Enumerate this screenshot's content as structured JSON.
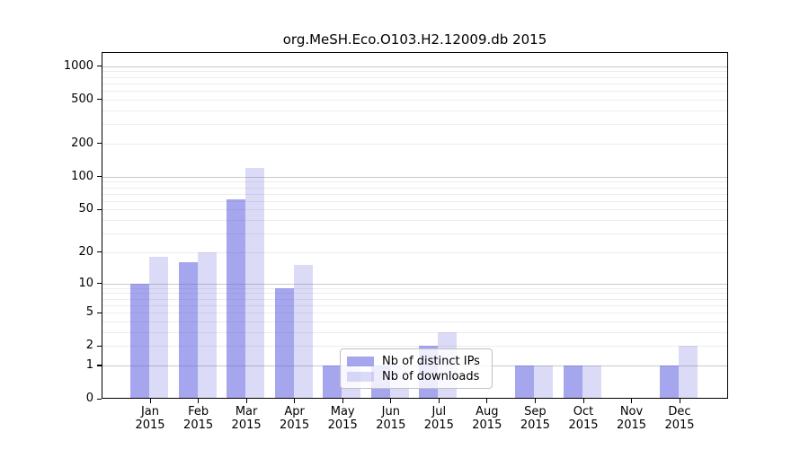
{
  "title": "org.MeSH.Eco.O103.H2.12009.db 2015",
  "legend": {
    "items": [
      {
        "label": "Nb of distinct IPs",
        "swatch_color": "rgba(92,92,224,0.55)",
        "swatch_icon": "bar-swatch-icon"
      },
      {
        "label": "Nb of downloads",
        "swatch_color": "rgba(92,92,224,0.22)",
        "swatch_icon": "bar-swatch-icon"
      }
    ]
  },
  "colors": {
    "bar_base": "#5c5ce0",
    "bar_distinct_ips": "rgba(92,92,224,0.55)",
    "bar_downloads": "rgba(92,92,224,0.22)",
    "grid_major": "#c9c9c9",
    "grid_minor": "#ececec",
    "axis": "#000000",
    "legend_border": "#c0c0c0"
  },
  "chart_data": {
    "type": "bar",
    "title": "org.MeSH.Eco.O103.H2.12009.db 2015",
    "year": "2015",
    "months": [
      "Jan",
      "Feb",
      "Mar",
      "Apr",
      "May",
      "Jun",
      "Jul",
      "Aug",
      "Sep",
      "Oct",
      "Nov",
      "Dec"
    ],
    "categories": [
      "Jan 2015",
      "Feb 2015",
      "Mar 2015",
      "Apr 2015",
      "May 2015",
      "Jun 2015",
      "Jul 2015",
      "Aug 2015",
      "Sep 2015",
      "Oct 2015",
      "Nov 2015",
      "Dec 2015"
    ],
    "series": [
      {
        "name": "Nb of distinct IPs",
        "key": "ips",
        "values": [
          10,
          16,
          62,
          9,
          1,
          1,
          2,
          0,
          1,
          1,
          0,
          1
        ]
      },
      {
        "name": "Nb of downloads",
        "key": "downloads",
        "values": [
          18,
          20,
          120,
          15,
          1,
          1,
          3,
          0,
          1,
          1,
          0,
          2
        ]
      }
    ],
    "yscale": "log1p",
    "yticks": [
      0,
      1,
      2,
      5,
      10,
      20,
      50,
      100,
      200,
      500,
      1000
    ],
    "ylim": [
      0,
      1340
    ],
    "xlabel": "",
    "ylabel": "",
    "grid": true,
    "legend_position": "inside-bottom-center"
  }
}
